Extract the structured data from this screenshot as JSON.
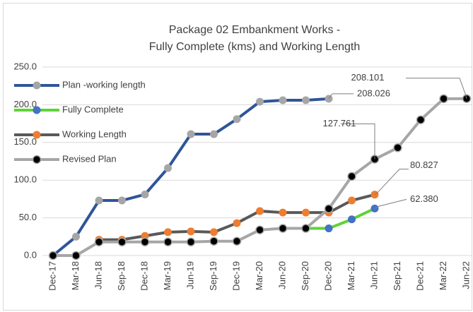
{
  "chart_data": {
    "type": "line",
    "title": [
      "Package 02 Embankment Works -",
      "Fully Complete (kms) and Working Length"
    ],
    "categories": [
      "Dec-17",
      "Mar-18",
      "Jun-18",
      "Sep-18",
      "Dec-18",
      "Mar-19",
      "Jun-19",
      "Sep-19",
      "Dec-19",
      "Mar-20",
      "Jun-20",
      "Sep-20",
      "Dec-20",
      "Mar-21",
      "Jun-21",
      "Sep-21",
      "Dec-21",
      "Mar-22",
      "Jun-22"
    ],
    "series": [
      {
        "name": "Plan -working length",
        "color": "#2f5597",
        "marker_color": "#a6a6a6",
        "values": [
          0,
          25,
          73,
          73,
          81,
          116,
          161,
          161,
          181,
          204,
          206,
          206,
          208.026,
          null,
          null,
          null,
          null,
          null,
          null
        ],
        "value_labels": [
          null,
          null,
          null,
          null,
          null,
          null,
          null,
          null,
          null,
          null,
          null,
          null,
          "208.026",
          null,
          null,
          null,
          null,
          null,
          null
        ]
      },
      {
        "name": "Fully Complete",
        "color": "#5fd335",
        "marker_color": "#4472c4",
        "values": [
          null,
          null,
          null,
          null,
          null,
          null,
          null,
          null,
          null,
          null,
          null,
          36,
          36,
          48,
          62.38,
          null,
          null,
          null,
          null
        ],
        "value_labels": [
          null,
          null,
          null,
          null,
          null,
          null,
          null,
          null,
          null,
          null,
          null,
          null,
          null,
          null,
          "62.380",
          null,
          null,
          null,
          null
        ]
      },
      {
        "name": "Working Length",
        "color": "#595959",
        "marker_color": "#ed7d31",
        "values": [
          null,
          null,
          21,
          21,
          26,
          31,
          32,
          31,
          43,
          59,
          57,
          57,
          57,
          73,
          80.827,
          null,
          null,
          null,
          null
        ],
        "value_labels": [
          null,
          null,
          null,
          null,
          null,
          null,
          null,
          null,
          null,
          null,
          null,
          null,
          null,
          null,
          "80.827",
          null,
          null,
          null,
          null
        ]
      },
      {
        "name": "Revised Plan",
        "color": "#a6a6a6",
        "marker_color": "#000000",
        "values": [
          0,
          0,
          18,
          18,
          18,
          18,
          18,
          19,
          19,
          34,
          36,
          36,
          62,
          105,
          127.761,
          143,
          180,
          208,
          208.101
        ],
        "value_labels": [
          null,
          null,
          null,
          null,
          null,
          null,
          null,
          null,
          null,
          null,
          null,
          null,
          null,
          null,
          "127.761",
          null,
          null,
          null,
          "208.101"
        ]
      }
    ],
    "ylim": [
      0,
      250
    ],
    "yticks": [
      {
        "value": 0,
        "label": "0.0"
      },
      {
        "value": 50,
        "label": "50.0"
      },
      {
        "value": 100,
        "label": "100.0"
      },
      {
        "value": 150,
        "label": "150.0"
      },
      {
        "value": 200,
        "label": "200.0"
      },
      {
        "value": 250,
        "label": "250.0"
      }
    ],
    "grid": true,
    "legend": "upper left"
  }
}
